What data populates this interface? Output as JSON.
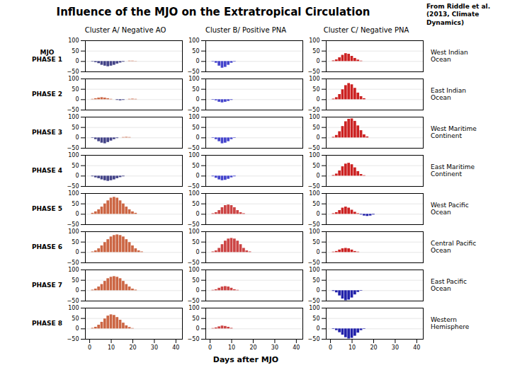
{
  "chart_data": {
    "type": "bar",
    "title": "Influence of the MJO on the Extratropical Circulation",
    "annotations": [
      "From Riddle et al.\n(2013, Climate\nDynamics)"
    ],
    "categories": [
      "MJO\nPHASE 1",
      "PHASE 2",
      "PHASE 3",
      "PHASE 4",
      "PHASE 5",
      "PHASE 6",
      "PHASE 7",
      "PHASE 8"
    ],
    "region_labels": [
      "West Indian\nOcean",
      "East Indian\nOcean",
      "West Maritime\nContinent",
      "East Maritime\nContinent",
      "West Pacific\nOcean",
      "Central Pacific\nOcean",
      "East Pacific\nOcean",
      "Western\nHemisphere"
    ],
    "xlabel": "Days after MJO",
    "x": [
      0.0,
      1.4285714285714286,
      2.857142857142857,
      4.285714285714286,
      5.714285714285714,
      7.142857142857143,
      8.571428571428571,
      10.0,
      11.428571428571429,
      12.857142857142858,
      14.285714285714286,
      15.714285714285714,
      17.142857142857142,
      18.571428571428573,
      20.0,
      21.428571428571427,
      22.857142857142858,
      24.285714285714285,
      25.714285714285715,
      27.142857142857142,
      28.571428571428573,
      30.0,
      31.428571428571427,
      32.857142857142854,
      34.285714285714285,
      35.714285714285715,
      37.142857142857146,
      38.57142857142857,
      40.0
    ],
    "xlim": [
      -2,
      43
    ],
    "xticks": [
      0,
      10,
      20,
      30,
      40
    ],
    "ylim": [
      -50,
      100
    ],
    "yticks": [
      -50,
      0,
      50,
      100
    ],
    "grid": true,
    "series": [
      {
        "name": "Cluster A/ Negative AO",
        "color": "#cc6644",
        "negative_color": "#444488",
        "values": [
          [
            0,
            -2,
            -5,
            -10,
            -18,
            -22,
            -25,
            -22,
            -18,
            -12,
            -7,
            -3,
            0,
            2,
            2,
            1,
            0,
            0,
            0,
            0,
            0,
            0,
            0,
            0,
            0,
            0,
            0,
            0,
            0
          ],
          [
            0,
            2,
            5,
            8,
            10,
            8,
            5,
            2,
            0,
            -3,
            -5,
            -3,
            0,
            2,
            3,
            2,
            0,
            0,
            0,
            0,
            0,
            0,
            0,
            0,
            0,
            0,
            0,
            0,
            0
          ],
          [
            0,
            -2,
            -8,
            -18,
            -25,
            -28,
            -22,
            -15,
            -8,
            -3,
            0,
            2,
            3,
            2,
            0,
            0,
            0,
            0,
            0,
            0,
            0,
            0,
            0,
            0,
            0,
            0,
            0,
            0,
            0
          ],
          [
            0,
            -3,
            -8,
            -12,
            -18,
            -22,
            -25,
            -22,
            -18,
            -12,
            -7,
            -3,
            0,
            0,
            0,
            0,
            0,
            0,
            0,
            0,
            0,
            0,
            0,
            0,
            0,
            0,
            0,
            0,
            0
          ],
          [
            0,
            5,
            12,
            22,
            35,
            50,
            65,
            78,
            82,
            78,
            65,
            50,
            35,
            22,
            12,
            5,
            0,
            0,
            0,
            0,
            0,
            0,
            0,
            0,
            0,
            0,
            0,
            0,
            0
          ],
          [
            0,
            3,
            8,
            18,
            32,
            48,
            62,
            75,
            82,
            85,
            82,
            75,
            62,
            48,
            32,
            18,
            8,
            3,
            0,
            0,
            0,
            0,
            0,
            0,
            0,
            0,
            0,
            0,
            0
          ],
          [
            0,
            3,
            8,
            18,
            30,
            45,
            58,
            65,
            68,
            65,
            58,
            45,
            30,
            18,
            8,
            3,
            0,
            0,
            0,
            0,
            0,
            0,
            0,
            0,
            0,
            0,
            0,
            0,
            0
          ],
          [
            0,
            3,
            8,
            18,
            32,
            48,
            62,
            68,
            65,
            55,
            42,
            28,
            15,
            7,
            2,
            0,
            0,
            0,
            0,
            0,
            0,
            0,
            0,
            0,
            0,
            0,
            0,
            0,
            0
          ]
        ]
      },
      {
        "name": "Cluster B/ Positive PNA",
        "color": "#cc4444",
        "negative_color": "#4444cc",
        "values": [
          [
            0,
            -2,
            -8,
            -22,
            -32,
            -28,
            -18,
            -8,
            -2,
            0,
            0,
            0,
            0,
            0,
            0,
            0,
            0,
            0,
            0,
            0,
            0,
            0,
            0,
            0,
            0,
            0,
            0,
            0,
            0
          ],
          [
            0,
            -2,
            -5,
            -12,
            -15,
            -12,
            -8,
            -3,
            0,
            0,
            0,
            0,
            0,
            0,
            0,
            0,
            0,
            0,
            0,
            0,
            0,
            0,
            0,
            0,
            0,
            0,
            0,
            0,
            0
          ],
          [
            0,
            -2,
            -8,
            -18,
            -28,
            -25,
            -18,
            -8,
            -2,
            0,
            0,
            0,
            0,
            0,
            0,
            0,
            0,
            0,
            0,
            0,
            0,
            0,
            0,
            0,
            0,
            0,
            0,
            0,
            0
          ],
          [
            0,
            -3,
            -10,
            -18,
            -22,
            -20,
            -15,
            -8,
            -3,
            0,
            0,
            0,
            0,
            0,
            0,
            0,
            0,
            0,
            0,
            0,
            0,
            0,
            0,
            0,
            0,
            0,
            0,
            0,
            0
          ],
          [
            0,
            3,
            8,
            18,
            32,
            42,
            45,
            42,
            32,
            18,
            8,
            3,
            0,
            0,
            0,
            0,
            0,
            0,
            0,
            0,
            0,
            0,
            0,
            0,
            0,
            0,
            0,
            0,
            0
          ],
          [
            0,
            3,
            8,
            20,
            38,
            55,
            65,
            68,
            65,
            55,
            38,
            20,
            8,
            3,
            0,
            0,
            0,
            0,
            0,
            0,
            0,
            0,
            0,
            0,
            0,
            0,
            0,
            0,
            0
          ],
          [
            0,
            2,
            5,
            12,
            18,
            20,
            18,
            12,
            5,
            2,
            0,
            0,
            0,
            0,
            0,
            0,
            0,
            0,
            0,
            0,
            0,
            0,
            0,
            0,
            0,
            0,
            0,
            0,
            0
          ],
          [
            0,
            2,
            5,
            10,
            14,
            12,
            8,
            3,
            0,
            0,
            0,
            0,
            0,
            0,
            0,
            0,
            0,
            0,
            0,
            0,
            0,
            0,
            0,
            0,
            0,
            0,
            0,
            0,
            0
          ]
        ]
      },
      {
        "name": "Cluster C/ Negative PNA",
        "color": "#cc2222",
        "negative_color": "#2222aa",
        "values": [
          [
            0,
            3,
            8,
            18,
            30,
            38,
            35,
            25,
            15,
            7,
            2,
            0,
            0,
            0,
            0,
            0,
            0,
            0,
            0,
            0,
            0,
            0,
            0,
            0,
            0,
            0,
            0,
            0,
            0
          ],
          [
            0,
            3,
            10,
            25,
            48,
            68,
            78,
            72,
            55,
            32,
            15,
            5,
            0,
            0,
            0,
            0,
            0,
            0,
            0,
            0,
            0,
            0,
            0,
            0,
            0,
            0,
            0,
            0,
            0
          ],
          [
            0,
            3,
            12,
            30,
            55,
            78,
            90,
            92,
            80,
            58,
            35,
            15,
            5,
            0,
            0,
            0,
            0,
            0,
            0,
            0,
            0,
            0,
            0,
            0,
            0,
            0,
            0,
            0,
            0
          ],
          [
            0,
            3,
            10,
            25,
            45,
            58,
            62,
            55,
            40,
            22,
            8,
            2,
            0,
            0,
            0,
            0,
            0,
            0,
            0,
            0,
            0,
            0,
            0,
            0,
            0,
            0,
            0,
            0,
            0
          ],
          [
            0,
            3,
            8,
            18,
            30,
            35,
            30,
            20,
            10,
            3,
            -3,
            -8,
            -10,
            -8,
            -3,
            0,
            0,
            0,
            0,
            0,
            0,
            0,
            0,
            0,
            0,
            0,
            0,
            0,
            0
          ],
          [
            0,
            2,
            5,
            12,
            18,
            20,
            18,
            12,
            5,
            2,
            0,
            0,
            0,
            0,
            0,
            0,
            0,
            0,
            0,
            0,
            0,
            0,
            0,
            0,
            0,
            0,
            0,
            0,
            0
          ],
          [
            0,
            -3,
            -10,
            -25,
            -40,
            -48,
            -45,
            -35,
            -20,
            -8,
            -2,
            0,
            0,
            0,
            0,
            0,
            0,
            0,
            0,
            0,
            0,
            0,
            0,
            0,
            0,
            0,
            0,
            0,
            0
          ],
          [
            0,
            -2,
            -8,
            -18,
            -30,
            -42,
            -48,
            -45,
            -35,
            -20,
            -8,
            -2,
            0,
            0,
            0,
            0,
            0,
            0,
            0,
            0,
            0,
            0,
            0,
            0,
            0,
            0,
            0,
            0,
            0
          ]
        ]
      }
    ]
  }
}
